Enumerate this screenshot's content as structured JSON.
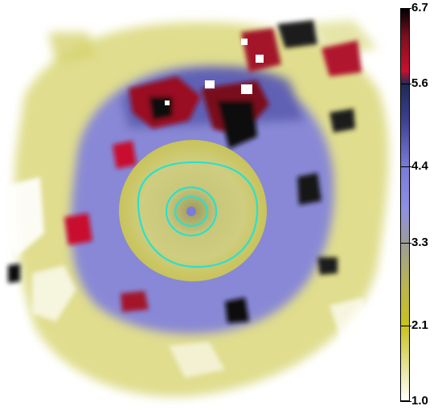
{
  "colorbar": {
    "ticks": [
      "6.7",
      "5.6",
      "4.4",
      "3.3",
      "2.1",
      "1.0"
    ],
    "min": 1.0,
    "max": 6.7,
    "stops": [
      {
        "value": 1.0,
        "color": "#ffffff"
      },
      {
        "value": 2.1,
        "color": "#c9c21a"
      },
      {
        "value": 2.7,
        "color": "#b9b455"
      },
      {
        "value": 3.3,
        "color": "#9c9c9c"
      },
      {
        "value": 3.8,
        "color": "#8f8fe3"
      },
      {
        "value": 4.4,
        "color": "#7b7bd9"
      },
      {
        "value": 5.1,
        "color": "#3e3e8e"
      },
      {
        "value": 5.6,
        "color": "#1d2b55"
      },
      {
        "value": 5.8,
        "color": "#c8102e"
      },
      {
        "value": 6.3,
        "color": "#7a1020"
      },
      {
        "value": 6.7,
        "color": "#000000"
      }
    ]
  },
  "contour_color": "#28e0d0"
}
